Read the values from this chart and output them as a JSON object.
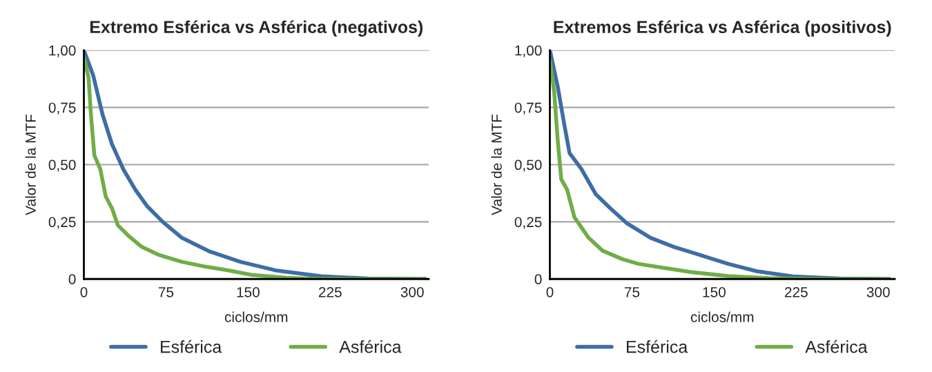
{
  "chart_data": [
    {
      "type": "line",
      "title": "Extremo Esférica vs Asférica (negativos)",
      "xlabel": "ciclos/mm",
      "ylabel": "Valor de la MTF",
      "xlim": [
        0,
        315
      ],
      "xticks": [
        0,
        75,
        150,
        225,
        300
      ],
      "ylim": [
        0,
        1
      ],
      "yticks": [
        0,
        {
          "value": 0.25,
          "label": "0,25"
        },
        {
          "value": 0.5,
          "label": "0,50"
        },
        {
          "value": 0.75,
          "label": "0,75"
        },
        {
          "value": 1,
          "label": "1,00"
        }
      ],
      "grid": "y",
      "legend": "bottom",
      "marker": "none",
      "line_style": "solid",
      "series": [
        {
          "name": "Esférica",
          "color": "#3e6da5",
          "x": [
            0,
            8.5,
            17,
            25.6,
            36,
            47,
            57.5,
            72,
            89.5,
            115,
            143,
            175,
            217,
            260,
            313
          ],
          "values": [
            1.0,
            0.89,
            0.72,
            0.59,
            0.48,
            0.39,
            0.32,
            0.25,
            0.18,
            0.12,
            0.075,
            0.038,
            0.012,
            0.002,
            0.0
          ]
        },
        {
          "name": "Asférica",
          "color": "#70ad47",
          "x": [
            0,
            4.3,
            6.4,
            9.6,
            15,
            20,
            25.6,
            31,
            40.5,
            53,
            68,
            89.5,
            111,
            132,
            153,
            185,
            217,
            313
          ],
          "values": [
            0.97,
            0.88,
            0.72,
            0.54,
            0.48,
            0.36,
            0.31,
            0.235,
            0.19,
            0.14,
            0.106,
            0.075,
            0.054,
            0.038,
            0.018,
            0.005,
            0.0,
            0.0
          ]
        }
      ]
    },
    {
      "type": "line",
      "title": "Extremos Esférica vs Asférica (positivos)",
      "xlabel": "ciclos/mm",
      "ylabel": "Valor de la MTF",
      "xlim": [
        0,
        315
      ],
      "xticks": [
        0,
        75,
        150,
        225,
        300
      ],
      "ylim": [
        0,
        1
      ],
      "yticks": [
        0,
        {
          "value": 0.25,
          "label": "0,25"
        },
        {
          "value": 0.5,
          "label": "0,50"
        },
        {
          "value": 0.75,
          "label": "0,75"
        },
        {
          "value": 1,
          "label": "1,00"
        }
      ],
      "grid": "y",
      "legend": "bottom",
      "marker": "none",
      "line_style": "solid",
      "series": [
        {
          "name": "Esférica",
          "color": "#3e6da5",
          "x": [
            0,
            7.2,
            12.6,
            18,
            28.9,
            42,
            55,
            70,
            92,
            113.5,
            135,
            163,
            189,
            222,
            265,
            311
          ],
          "values": [
            1.0,
            0.84,
            0.69,
            0.55,
            0.48,
            0.37,
            0.31,
            0.245,
            0.18,
            0.14,
            0.108,
            0.066,
            0.034,
            0.011,
            0.002,
            0.0
          ]
        },
        {
          "name": "Asférica",
          "color": "#70ad47",
          "x": [
            0,
            3.9,
            7.2,
            10.4,
            15.8,
            22.4,
            35.4,
            48,
            66,
            81,
            102.6,
            131,
            163,
            200,
            244,
            311
          ],
          "values": [
            0.955,
            0.82,
            0.605,
            0.436,
            0.39,
            0.27,
            0.18,
            0.124,
            0.087,
            0.066,
            0.05,
            0.029,
            0.013,
            0.004,
            0.0,
            0.0
          ]
        }
      ]
    }
  ]
}
